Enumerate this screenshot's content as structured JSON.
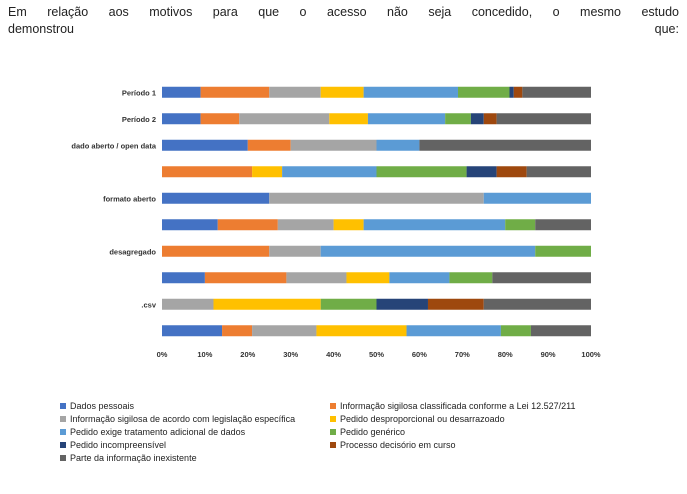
{
  "paragraph": {
    "line1": "Em relação aos motivos para que o acesso não seja concedido, o mesmo estudo",
    "line2_left": "demonstrou",
    "line2_right": "que:"
  },
  "chart_data": {
    "type": "bar",
    "orientation": "horizontal-stacked-100",
    "categories": [
      "Período 1",
      "Período 2",
      "dado aberto / open data",
      "",
      "formato aberto",
      "",
      "desagregado",
      "",
      ".csv",
      ""
    ],
    "xlim": [
      0,
      100
    ],
    "xticks": [
      "0%",
      "10%",
      "20%",
      "30%",
      "40%",
      "50%",
      "60%",
      "70%",
      "80%",
      "90%",
      "100%"
    ],
    "legend_position": "bottom",
    "series": [
      {
        "name": "Dados pessoais",
        "color": "#4472c4",
        "values": [
          9,
          9,
          20,
          0,
          25,
          13,
          0,
          10,
          0,
          14
        ]
      },
      {
        "name": "Informação sigilosa classificada conforme a Lei 12.527/211",
        "color": "#ed7d31",
        "values": [
          16,
          9,
          10,
          21,
          0,
          14,
          25,
          19,
          0,
          7
        ]
      },
      {
        "name": "Informação sigilosa de acordo com legislação específica",
        "color": "#a5a5a5",
        "values": [
          12,
          21,
          20,
          0,
          50,
          13,
          12,
          14,
          12,
          15
        ]
      },
      {
        "name": "Pedido desproporcional ou desarrazoado",
        "color": "#ffc000",
        "values": [
          10,
          9,
          0,
          7,
          0,
          7,
          0,
          10,
          25,
          21
        ]
      },
      {
        "name": "Pedido exige tratamento adicional de dados",
        "color": "#5b9bd5",
        "values": [
          22,
          18,
          10,
          22,
          25,
          33,
          50,
          14,
          0,
          22
        ]
      },
      {
        "name": "Pedido genérico",
        "color": "#70ad47",
        "values": [
          12,
          6,
          0,
          21,
          0,
          7,
          13,
          10,
          13,
          7
        ]
      },
      {
        "name": "Pedido incompreensível",
        "color": "#264478",
        "values": [
          1,
          3,
          0,
          7,
          0,
          0,
          0,
          0,
          12,
          0
        ]
      },
      {
        "name": "Processo decisório em curso",
        "color": "#9e480e",
        "values": [
          2,
          3,
          0,
          7,
          0,
          0,
          0,
          0,
          13,
          0
        ]
      },
      {
        "name": "Parte da informação inexistente",
        "color": "#636363",
        "values": [
          16,
          22,
          40,
          15,
          0,
          13,
          0,
          23,
          25,
          14
        ]
      }
    ]
  }
}
